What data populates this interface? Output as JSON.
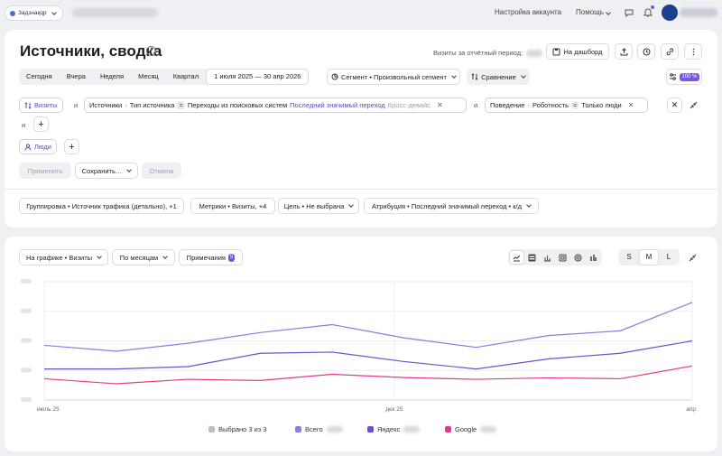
{
  "topbar": {
    "counter_label": "Задзнaқqр",
    "account_settings": "Настройка аккаунта",
    "help": "Помощь"
  },
  "header": {
    "title": "Источники, сводка",
    "period_label": "Визиты за отчётный период:",
    "dashboard_button": "На дашборд"
  },
  "period": {
    "tabs": [
      "Сегодня",
      "Вчера",
      "Неделя",
      "Месяц",
      "Квартал"
    ],
    "date_range": "1 июля 2025 — 30 апр 2026",
    "segment": "Сегмент • Произвольный сегмент",
    "comparison": "Сравнение",
    "sampling_badge": "100 %"
  },
  "filters": {
    "visits_chip": "Визиты",
    "and1": "и",
    "and2": "и",
    "and3": "и",
    "source_filter": {
      "part1": "Источники",
      "part2": "Тип источника",
      "op": "=",
      "value": "Переходы из поисковых систем",
      "attribution": "Последний значимый переход",
      "device": "Кросс-девайс"
    },
    "behavior_filter": {
      "part1": "Поведение",
      "part2": "Роботность",
      "op": "=",
      "value": "Только люди"
    },
    "people_chip": "Люди"
  },
  "actions": {
    "apply": "Применить",
    "save": "Сохранить…",
    "cancel": "Отмена"
  },
  "settings": {
    "grouping": "Группировка • Источник трафика (детально), +1",
    "metrics": "Метрики • Визиты, +4",
    "goal": "Цель • Не выбрана",
    "attribution": "Атрибуция • Последний значимый переход • к/д"
  },
  "chart_controls": {
    "on_chart": "На графике • Визиты",
    "by_months": "По месяцам",
    "notes": "Примечания",
    "notes_count": "5",
    "sizes": [
      "S",
      "M",
      "L"
    ],
    "selected_size": "M"
  },
  "chart_data": {
    "type": "line",
    "x": [
      "2025-07",
      "2025-08",
      "2025-09",
      "2025-10",
      "2025-11",
      "2025-12",
      "2026-01",
      "2026-02",
      "2026-03",
      "2026-04"
    ],
    "x_tick_labels": [
      "июль 25",
      "дек 25",
      "апр"
    ],
    "ylim": [
      0,
      400
    ],
    "series": [
      {
        "name": "Всего",
        "color": "#8b7bdc",
        "values": [
          185,
          165,
          192,
          228,
          255,
          210,
          178,
          218,
          234,
          330
        ]
      },
      {
        "name": "Яндекс",
        "color": "#6e4fcf",
        "values": [
          105,
          105,
          113,
          158,
          162,
          130,
          105,
          139,
          158,
          200
        ]
      },
      {
        "name": "Google",
        "color": "#e3398d",
        "values": [
          72,
          55,
          70,
          66,
          87,
          76,
          70,
          75,
          72,
          115
        ]
      }
    ],
    "legend_selected": "Выбрано 3 из 3"
  }
}
